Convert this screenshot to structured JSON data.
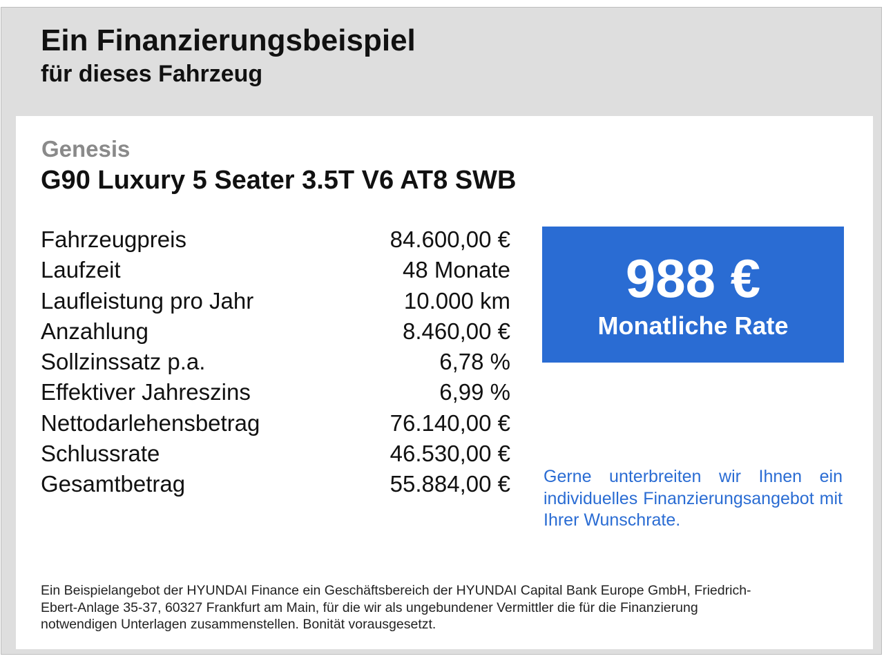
{
  "header": {
    "title": "Ein Finanzierungsbeispiel",
    "subtitle": "für dieses Fahrzeug"
  },
  "vehicle": {
    "brand": "Genesis",
    "model": "G90 Luxury 5 Seater 3.5T V6 AT8 SWB"
  },
  "specs": [
    {
      "label": "Fahrzeugpreis",
      "value": "84.600,00 €"
    },
    {
      "label": "Laufzeit",
      "value": "48 Monate"
    },
    {
      "label": "Laufleistung pro Jahr",
      "value": "10.000 km"
    },
    {
      "label": "Anzahlung",
      "value": "8.460,00 €"
    },
    {
      "label": "Sollzinssatz p.a.",
      "value": "6,78 %"
    },
    {
      "label": "Effektiver Jahreszins",
      "value": "6,99 %"
    },
    {
      "label": "Nettodarlehensbetrag",
      "value": "76.140,00 €"
    },
    {
      "label": "Schlussrate",
      "value": "46.530,00 €"
    },
    {
      "label": "Gesamtbetrag",
      "value": "55.884,00 €"
    }
  ],
  "rate": {
    "amount": "988 €",
    "label": "Monatliche Rate"
  },
  "offer_text": "Gerne unterbreiten wir Ihnen ein individuelles Finanzierungsangebot mit Ihrer Wunschrate.",
  "disclaimer": "Ein Beispielangebot der HYUNDAI Finance ein Geschäftsbereich der HYUNDAI Capital Bank Europe GmbH, Friedrich-Ebert-Anlage 35-37, 60327 Frankfurt am Main, für die wir als ungebundener Vermittler die für die Finanzierung notwendigen Unterlagen zusammenstellen. Bonität vorausgesetzt.",
  "colors": {
    "frame_background": "#dedede",
    "accent_blue": "#2a6cd3",
    "brand_gray": "#8a8a8a"
  }
}
